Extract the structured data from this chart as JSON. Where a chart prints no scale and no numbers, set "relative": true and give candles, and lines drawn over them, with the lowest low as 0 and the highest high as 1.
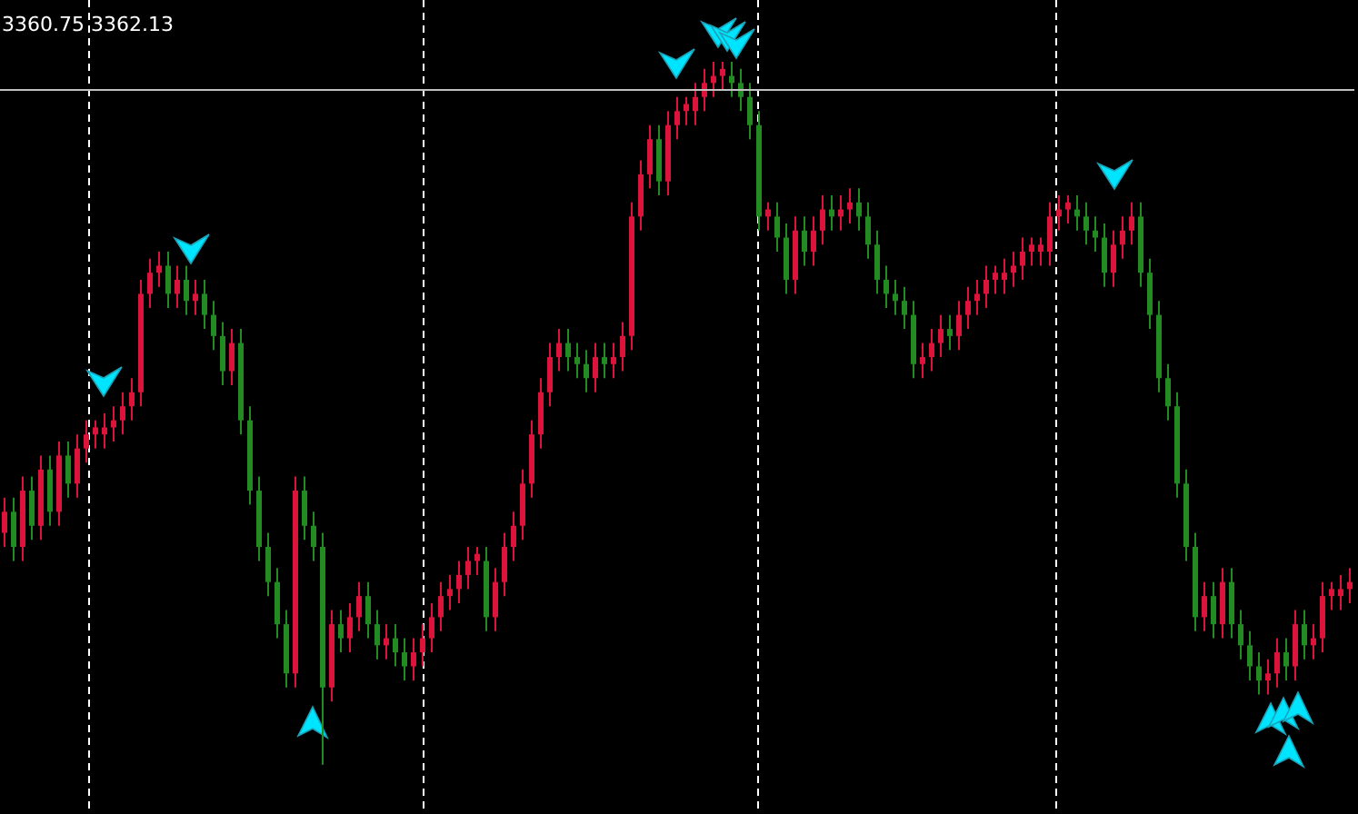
{
  "chart_data": {
    "type": "candlestick",
    "relative": true,
    "tick_labels": false,
    "annotations": [
      "3360.75 3362.13"
    ],
    "colors": [
      "#dc143c",
      "#228b22",
      "#dc143c",
      "#228b22",
      "#dc143c",
      "#228b22",
      "#dc143c",
      "#228b22",
      "#dc143c",
      "#dc143c",
      "#dc143c",
      "#dc143c",
      "#dc143c",
      "#dc143c",
      "#dc143c",
      "#dc143c",
      "#dc143c",
      "#dc143c",
      "#228b22",
      "#dc143c",
      "#228b22",
      "#dc143c",
      "#228b22",
      "#228b22",
      "#228b22",
      "#dc143c",
      "#228b22",
      "#228b22",
      "#228b22",
      "#228b22",
      "#228b22",
      "#228b22",
      "#dc143c",
      "#228b22",
      "#228b22",
      "#228b22",
      "#dc143c",
      "#228b22",
      "#dc143c",
      "#dc143c",
      "#228b22",
      "#228b22",
      "#dc143c",
      "#228b22",
      "#228b22",
      "#dc143c",
      "#dc143c",
      "#dc143c",
      "#dc143c",
      "#dc143c",
      "#dc143c",
      "#dc143c",
      "#dc143c",
      "#228b22",
      "#dc143c",
      "#dc143c",
      "#dc143c",
      "#dc143c",
      "#dc143c",
      "#dc143c",
      "#dc143c",
      "#dc143c",
      "#228b22",
      "#228b22",
      "#228b22",
      "#dc143c",
      "#228b22",
      "#dc143c",
      "#dc143c",
      "#dc143c",
      "#dc143c",
      "#dc143c",
      "#228b22",
      "#dc143c",
      "#dc143c",
      "#dc143c",
      "#dc143c",
      "#dc143c",
      "#dc143c",
      "#dc143c",
      "#228b22",
      "#228b22",
      "#228b22",
      "#228b22",
      "#dc143c",
      "#228b22",
      "#228b22",
      "#dc143c",
      "#228b22",
      "#dc143c",
      "#dc143c",
      "#228b22",
      "#dc143c",
      "#dc143c",
      "#228b22",
      "#228b22",
      "#228b22",
      "#228b22",
      "#228b22",
      "#228b22",
      "#228b22",
      "#dc143c",
      "#dc143c",
      "#dc143c",
      "#228b22",
      "#dc143c",
      "#dc143c",
      "#dc143c",
      "#dc143c",
      "#dc143c",
      "#dc143c",
      "#dc143c",
      "#dc143c",
      "#dc143c",
      "#dc143c",
      "#dc143c",
      "#dc143c",
      "#dc143c",
      "#228b22",
      "#228b22",
      "#228b22",
      "#228b22",
      "#dc143c",
      "#dc143c",
      "#dc143c",
      "#228b22",
      "#228b22",
      "#228b22",
      "#228b22",
      "#228b22",
      "#228b22",
      "#228b22",
      "#dc143c",
      "#228b22",
      "#dc143c",
      "#228b22",
      "#228b22",
      "#228b22",
      "#228b22",
      "#dc143c",
      "#dc143c",
      "#228b22",
      "#dc143c",
      "#228b22",
      "#dc143c",
      "#dc143c",
      "#dc143c",
      "#dc143c",
      "#dc143c"
    ],
    "ref_lines": [
      {
        "axis": "y",
        "value": 0.96,
        "color": "#c0c0c0"
      }
    ],
    "categories": [
      null,
      null,
      null,
      null,
      null,
      null,
      null,
      null,
      null,
      null,
      null,
      null,
      null,
      null,
      null,
      null,
      null,
      null,
      null,
      null,
      null,
      null,
      null,
      null,
      null,
      null,
      null,
      null,
      null,
      null,
      null,
      null,
      null,
      null,
      null,
      null,
      null,
      null,
      null,
      null,
      null,
      null,
      null,
      null,
      null,
      null,
      null,
      null,
      null,
      null,
      null,
      null,
      null,
      null,
      null,
      null,
      null,
      null,
      null,
      null,
      null,
      null,
      null,
      null,
      null,
      null,
      null,
      null,
      null,
      null,
      null,
      null,
      null,
      null,
      null,
      null,
      null,
      null,
      null,
      null,
      null,
      null,
      null,
      null,
      null,
      null,
      null,
      null,
      null,
      null,
      null,
      null,
      null,
      null,
      null,
      null,
      null,
      null,
      null,
      null,
      null,
      null,
      null,
      null,
      null,
      null,
      null,
      null,
      null,
      null,
      null,
      null,
      null,
      null,
      null,
      null,
      null,
      null,
      null,
      null,
      null,
      null,
      null,
      null,
      null,
      null,
      null,
      null,
      null,
      null,
      null,
      null,
      null,
      null,
      null,
      null,
      null,
      null,
      null,
      null,
      null,
      null,
      null,
      null,
      null,
      null,
      null,
      null,
      null
    ],
    "ohlc": [
      [
        0.33,
        0.38,
        0.31,
        0.36
      ],
      [
        0.36,
        0.38,
        0.29,
        0.31
      ],
      [
        0.31,
        0.41,
        0.29,
        0.39
      ],
      [
        0.39,
        0.41,
        0.32,
        0.34
      ],
      [
        0.34,
        0.44,
        0.32,
        0.42
      ],
      [
        0.42,
        0.44,
        0.34,
        0.36
      ],
      [
        0.36,
        0.46,
        0.34,
        0.44
      ],
      [
        0.44,
        0.46,
        0.38,
        0.4
      ],
      [
        0.4,
        0.47,
        0.38,
        0.45
      ],
      [
        0.45,
        0.49,
        0.43,
        0.47
      ],
      [
        0.47,
        0.49,
        0.45,
        0.48
      ],
      [
        0.47,
        0.5,
        0.45,
        0.48
      ],
      [
        0.48,
        0.51,
        0.46,
        0.49
      ],
      [
        0.49,
        0.53,
        0.47,
        0.51
      ],
      [
        0.51,
        0.55,
        0.49,
        0.53
      ],
      [
        0.53,
        0.69,
        0.51,
        0.67
      ],
      [
        0.67,
        0.72,
        0.65,
        0.7
      ],
      [
        0.7,
        0.73,
        0.68,
        0.71
      ],
      [
        0.71,
        0.73,
        0.65,
        0.67
      ],
      [
        0.67,
        0.71,
        0.65,
        0.69
      ],
      [
        0.69,
        0.71,
        0.64,
        0.66
      ],
      [
        0.66,
        0.69,
        0.64,
        0.67
      ],
      [
        0.67,
        0.69,
        0.62,
        0.64
      ],
      [
        0.64,
        0.66,
        0.59,
        0.61
      ],
      [
        0.61,
        0.63,
        0.54,
        0.56
      ],
      [
        0.56,
        0.62,
        0.54,
        0.6
      ],
      [
        0.6,
        0.62,
        0.47,
        0.49
      ],
      [
        0.49,
        0.51,
        0.37,
        0.39
      ],
      [
        0.39,
        0.41,
        0.29,
        0.31
      ],
      [
        0.31,
        0.33,
        0.24,
        0.26
      ],
      [
        0.26,
        0.28,
        0.18,
        0.2
      ],
      [
        0.2,
        0.22,
        0.11,
        0.13
      ],
      [
        0.13,
        0.41,
        0.11,
        0.39
      ],
      [
        0.39,
        0.41,
        0.32,
        0.34
      ],
      [
        0.34,
        0.36,
        0.29,
        0.31
      ],
      [
        0.31,
        0.33,
        0.0,
        0.11
      ],
      [
        0.11,
        0.22,
        0.09,
        0.2
      ],
      [
        0.2,
        0.22,
        0.16,
        0.18
      ],
      [
        0.18,
        0.23,
        0.16,
        0.21
      ],
      [
        0.21,
        0.26,
        0.19,
        0.24
      ],
      [
        0.24,
        0.26,
        0.18,
        0.2
      ],
      [
        0.2,
        0.22,
        0.15,
        0.17
      ],
      [
        0.17,
        0.2,
        0.15,
        0.18
      ],
      [
        0.18,
        0.2,
        0.14,
        0.16
      ],
      [
        0.16,
        0.18,
        0.12,
        0.14
      ],
      [
        0.14,
        0.18,
        0.12,
        0.16
      ],
      [
        0.16,
        0.2,
        0.14,
        0.18
      ],
      [
        0.18,
        0.23,
        0.16,
        0.21
      ],
      [
        0.21,
        0.26,
        0.19,
        0.24
      ],
      [
        0.24,
        0.27,
        0.22,
        0.25
      ],
      [
        0.25,
        0.29,
        0.23,
        0.27
      ],
      [
        0.27,
        0.31,
        0.25,
        0.29
      ],
      [
        0.29,
        0.31,
        0.27,
        0.3
      ],
      [
        0.29,
        0.31,
        0.19,
        0.21
      ],
      [
        0.21,
        0.28,
        0.19,
        0.26
      ],
      [
        0.26,
        0.33,
        0.24,
        0.31
      ],
      [
        0.31,
        0.36,
        0.29,
        0.34
      ],
      [
        0.34,
        0.42,
        0.32,
        0.4
      ],
      [
        0.4,
        0.49,
        0.38,
        0.47
      ],
      [
        0.47,
        0.55,
        0.45,
        0.53
      ],
      [
        0.53,
        0.6,
        0.51,
        0.58
      ],
      [
        0.58,
        0.62,
        0.56,
        0.6
      ],
      [
        0.6,
        0.62,
        0.56,
        0.58
      ],
      [
        0.58,
        0.6,
        0.55,
        0.57
      ],
      [
        0.57,
        0.59,
        0.53,
        0.55
      ],
      [
        0.55,
        0.6,
        0.53,
        0.58
      ],
      [
        0.58,
        0.6,
        0.55,
        0.57
      ],
      [
        0.57,
        0.6,
        0.55,
        0.58
      ],
      [
        0.58,
        0.63,
        0.56,
        0.61
      ],
      [
        0.61,
        0.8,
        0.59,
        0.78
      ],
      [
        0.78,
        0.86,
        0.76,
        0.84
      ],
      [
        0.84,
        0.91,
        0.82,
        0.89
      ],
      [
        0.89,
        0.91,
        0.81,
        0.83
      ],
      [
        0.83,
        0.93,
        0.81,
        0.91
      ],
      [
        0.91,
        0.95,
        0.89,
        0.93
      ],
      [
        0.93,
        0.95,
        0.91,
        0.94
      ],
      [
        0.93,
        0.97,
        0.91,
        0.95
      ],
      [
        0.95,
        0.99,
        0.93,
        0.97
      ],
      [
        0.97,
        1.0,
        0.95,
        0.98
      ],
      [
        0.98,
        1.0,
        0.96,
        0.99
      ],
      [
        0.98,
        1.0,
        0.95,
        0.97
      ],
      [
        0.97,
        0.99,
        0.93,
        0.95
      ],
      [
        0.95,
        0.97,
        0.89,
        0.91
      ],
      [
        0.91,
        0.93,
        0.76,
        0.78
      ],
      [
        0.78,
        0.8,
        0.76,
        0.79
      ],
      [
        0.78,
        0.8,
        0.73,
        0.75
      ],
      [
        0.75,
        0.77,
        0.67,
        0.69
      ],
      [
        0.69,
        0.78,
        0.67,
        0.76
      ],
      [
        0.76,
        0.78,
        0.71,
        0.73
      ],
      [
        0.73,
        0.78,
        0.71,
        0.76
      ],
      [
        0.76,
        0.81,
        0.74,
        0.79
      ],
      [
        0.79,
        0.81,
        0.76,
        0.78
      ],
      [
        0.78,
        0.81,
        0.76,
        0.79
      ],
      [
        0.79,
        0.82,
        0.77,
        0.8
      ],
      [
        0.8,
        0.82,
        0.76,
        0.78
      ],
      [
        0.78,
        0.8,
        0.72,
        0.74
      ],
      [
        0.74,
        0.76,
        0.67,
        0.69
      ],
      [
        0.69,
        0.71,
        0.65,
        0.67
      ],
      [
        0.67,
        0.69,
        0.64,
        0.66
      ],
      [
        0.66,
        0.68,
        0.62,
        0.64
      ],
      [
        0.64,
        0.66,
        0.55,
        0.57
      ],
      [
        0.57,
        0.6,
        0.55,
        0.58
      ],
      [
        0.58,
        0.62,
        0.56,
        0.6
      ],
      [
        0.6,
        0.64,
        0.58,
        0.62
      ],
      [
        0.62,
        0.64,
        0.59,
        0.61
      ],
      [
        0.61,
        0.66,
        0.59,
        0.64
      ],
      [
        0.64,
        0.68,
        0.62,
        0.66
      ],
      [
        0.66,
        0.69,
        0.64,
        0.67
      ],
      [
        0.67,
        0.71,
        0.65,
        0.69
      ],
      [
        0.69,
        0.71,
        0.67,
        0.7
      ],
      [
        0.69,
        0.72,
        0.67,
        0.7
      ],
      [
        0.7,
        0.73,
        0.68,
        0.71
      ],
      [
        0.71,
        0.75,
        0.69,
        0.73
      ],
      [
        0.73,
        0.75,
        0.71,
        0.74
      ],
      [
        0.73,
        0.75,
        0.71,
        0.74
      ],
      [
        0.73,
        0.8,
        0.71,
        0.78
      ],
      [
        0.78,
        0.81,
        0.76,
        0.79
      ],
      [
        0.79,
        0.81,
        0.77,
        0.8
      ],
      [
        0.79,
        0.81,
        0.76,
        0.78
      ],
      [
        0.78,
        0.8,
        0.74,
        0.76
      ],
      [
        0.76,
        0.78,
        0.73,
        0.75
      ],
      [
        0.75,
        0.77,
        0.68,
        0.7
      ],
      [
        0.7,
        0.76,
        0.68,
        0.74
      ],
      [
        0.74,
        0.78,
        0.72,
        0.76
      ],
      [
        0.76,
        0.8,
        0.74,
        0.78
      ],
      [
        0.78,
        0.8,
        0.68,
        0.7
      ],
      [
        0.7,
        0.72,
        0.62,
        0.64
      ],
      [
        0.64,
        0.66,
        0.53,
        0.55
      ],
      [
        0.55,
        0.57,
        0.49,
        0.51
      ],
      [
        0.51,
        0.53,
        0.38,
        0.4
      ],
      [
        0.4,
        0.42,
        0.29,
        0.31
      ],
      [
        0.31,
        0.33,
        0.19,
        0.21
      ],
      [
        0.21,
        0.26,
        0.19,
        0.24
      ],
      [
        0.24,
        0.26,
        0.18,
        0.2
      ],
      [
        0.2,
        0.28,
        0.18,
        0.26
      ],
      [
        0.26,
        0.28,
        0.18,
        0.2
      ],
      [
        0.2,
        0.22,
        0.15,
        0.17
      ],
      [
        0.17,
        0.19,
        0.12,
        0.14
      ],
      [
        0.14,
        0.16,
        0.1,
        0.12
      ],
      [
        0.12,
        0.15,
        0.1,
        0.13
      ],
      [
        0.13,
        0.18,
        0.11,
        0.16
      ],
      [
        0.16,
        0.18,
        0.12,
        0.14
      ],
      [
        0.14,
        0.22,
        0.12,
        0.2
      ],
      [
        0.2,
        0.22,
        0.15,
        0.17
      ],
      [
        0.17,
        0.2,
        0.15,
        0.18
      ],
      [
        0.18,
        0.26,
        0.16,
        0.24
      ],
      [
        0.24,
        0.26,
        0.22,
        0.25
      ],
      [
        0.24,
        0.27,
        0.22,
        0.25
      ],
      [
        0.25,
        0.28,
        0.23,
        0.26
      ]
    ]
  }
}
